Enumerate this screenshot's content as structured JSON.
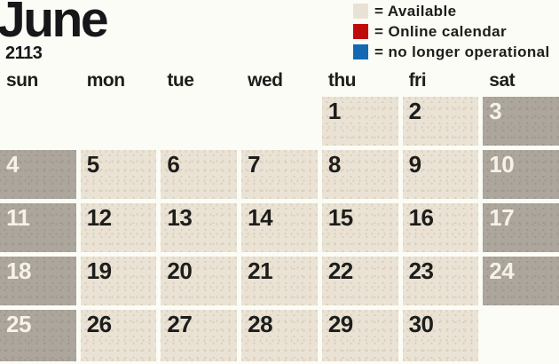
{
  "header": {
    "month": "June",
    "year": "2113"
  },
  "legend": [
    {
      "key": "available",
      "swatch_color": "#e9e2d4",
      "label": "= Available"
    },
    {
      "key": "online-calendar",
      "swatch_color": "#c00b0b",
      "label": "= Online calendar"
    },
    {
      "key": "no-longer-operational",
      "swatch_color": "#1467b3",
      "label": "= no longer operational"
    }
  ],
  "weekdays": [
    "sun",
    "mon",
    "tue",
    "wed",
    "thu",
    "fri",
    "sat"
  ],
  "grid": {
    "cells": [
      {
        "day": "",
        "type": "empty"
      },
      {
        "day": "",
        "type": "empty"
      },
      {
        "day": "",
        "type": "empty"
      },
      {
        "day": "",
        "type": "empty"
      },
      {
        "day": "1",
        "type": "available"
      },
      {
        "day": "2",
        "type": "available"
      },
      {
        "day": "3",
        "type": "weekend"
      },
      {
        "day": "4",
        "type": "weekend"
      },
      {
        "day": "5",
        "type": "available"
      },
      {
        "day": "6",
        "type": "available"
      },
      {
        "day": "7",
        "type": "available"
      },
      {
        "day": "8",
        "type": "available"
      },
      {
        "day": "9",
        "type": "available"
      },
      {
        "day": "10",
        "type": "weekend"
      },
      {
        "day": "11",
        "type": "weekend"
      },
      {
        "day": "12",
        "type": "available"
      },
      {
        "day": "13",
        "type": "available"
      },
      {
        "day": "14",
        "type": "available"
      },
      {
        "day": "15",
        "type": "available"
      },
      {
        "day": "16",
        "type": "available"
      },
      {
        "day": "17",
        "type": "weekend"
      },
      {
        "day": "18",
        "type": "weekend"
      },
      {
        "day": "19",
        "type": "available"
      },
      {
        "day": "20",
        "type": "available"
      },
      {
        "day": "21",
        "type": "available"
      },
      {
        "day": "22",
        "type": "available"
      },
      {
        "day": "23",
        "type": "available"
      },
      {
        "day": "24",
        "type": "weekend"
      },
      {
        "day": "25",
        "type": "weekend"
      },
      {
        "day": "26",
        "type": "available"
      },
      {
        "day": "27",
        "type": "available"
      },
      {
        "day": "28",
        "type": "available"
      },
      {
        "day": "29",
        "type": "available"
      },
      {
        "day": "30",
        "type": "available"
      },
      {
        "day": "",
        "type": "empty"
      }
    ]
  },
  "colors": {
    "page_background": "#fbfcf5",
    "available_bg": "#eae3d5",
    "weekend_bg": "#aca69d",
    "text_dark": "#1d1d1b",
    "text_light": "#f6f2e9",
    "legend_red": "#c00b0b",
    "legend_blue": "#1467b3"
  }
}
